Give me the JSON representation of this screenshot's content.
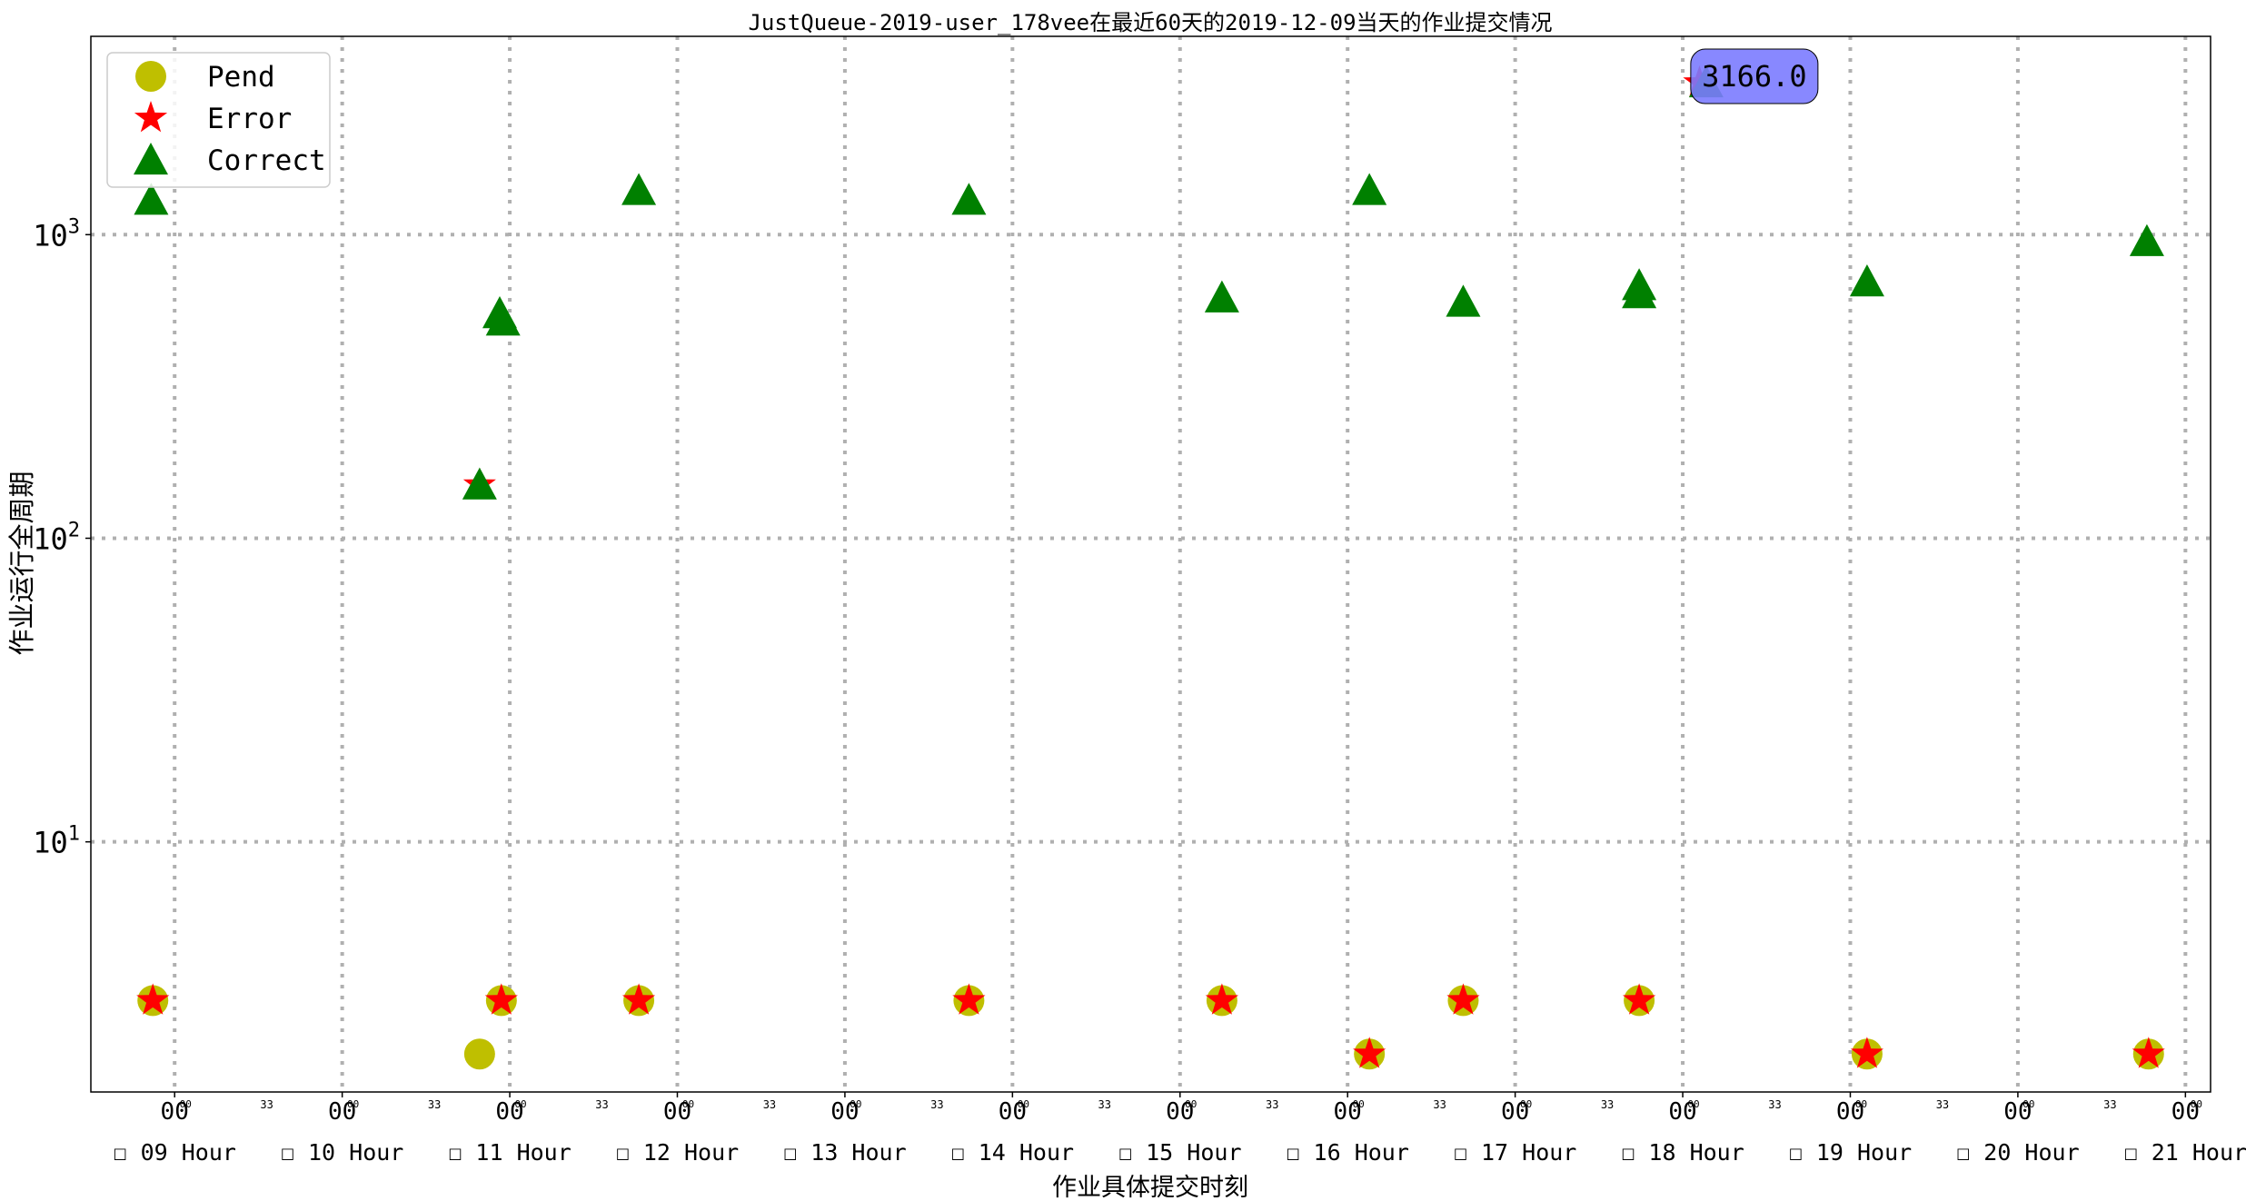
{
  "chart_data": {
    "type": "scatter",
    "title": "JustQueue-2019-user_178vee在最近60天的2019-12-09当天的作业提交情况",
    "xlabel": "作业具体提交时刻",
    "ylabel": "作业运行全周期",
    "y_scale": "log",
    "ylim": [
      1.5,
      4500
    ],
    "xlim": [
      8.5,
      21.15
    ],
    "grid": true,
    "legend_position": "upper-left",
    "y_ticks": [
      {
        "value": 10,
        "base": "10",
        "exp": "1"
      },
      {
        "value": 100,
        "base": "10",
        "exp": "2"
      },
      {
        "value": 1000,
        "base": "10",
        "exp": "3"
      }
    ],
    "x_major_ticks": [
      9,
      10,
      11,
      12,
      13,
      14,
      15,
      16,
      17,
      18,
      19,
      20,
      21
    ],
    "x_major_tick_label": "00",
    "x_minor_tick_label": "33",
    "x_minor_small_label": "00",
    "x_hour_labels": [
      "☐ 09 Hour",
      "☐ 10 Hour",
      "☐ 11 Hour",
      "☐ 12 Hour",
      "☐ 13 Hour",
      "☐ 14 Hour",
      "☐ 15 Hour",
      "☐ 16 Hour",
      "☐ 17 Hour",
      "☐ 18 Hour",
      "☐ 19 Hour",
      "☐ 20 Hour",
      "☐ 21 Hour"
    ],
    "series": [
      {
        "name": "Pend",
        "marker": "circle",
        "color": "#bfbf00",
        "points": [
          {
            "x": 8.87,
            "y": 3
          },
          {
            "x": 10.82,
            "y": 2
          },
          {
            "x": 10.95,
            "y": 3
          },
          {
            "x": 11.77,
            "y": 3
          },
          {
            "x": 13.74,
            "y": 3
          },
          {
            "x": 15.25,
            "y": 3
          },
          {
            "x": 16.13,
            "y": 2
          },
          {
            "x": 16.69,
            "y": 3
          },
          {
            "x": 17.74,
            "y": 3
          },
          {
            "x": 19.1,
            "y": 2
          },
          {
            "x": 20.78,
            "y": 2
          }
        ]
      },
      {
        "name": "Error",
        "marker": "star",
        "color": "#ff0000",
        "points": [
          {
            "x": 8.87,
            "y": 3
          },
          {
            "x": 10.82,
            "y": 150
          },
          {
            "x": 10.95,
            "y": 3
          },
          {
            "x": 11.77,
            "y": 3
          },
          {
            "x": 13.74,
            "y": 3
          },
          {
            "x": 15.25,
            "y": 3
          },
          {
            "x": 16.13,
            "y": 2
          },
          {
            "x": 16.69,
            "y": 3
          },
          {
            "x": 17.74,
            "y": 3
          },
          {
            "x": 18.1,
            "y": 3166
          },
          {
            "x": 19.1,
            "y": 2
          },
          {
            "x": 20.78,
            "y": 2
          }
        ]
      },
      {
        "name": "Correct",
        "marker": "triangle",
        "color": "#008000",
        "points": [
          {
            "x": 8.86,
            "y": 1300
          },
          {
            "x": 10.82,
            "y": 150
          },
          {
            "x": 10.94,
            "y": 550
          },
          {
            "x": 10.96,
            "y": 520
          },
          {
            "x": 11.77,
            "y": 1400
          },
          {
            "x": 13.74,
            "y": 1300
          },
          {
            "x": 15.25,
            "y": 620
          },
          {
            "x": 16.13,
            "y": 1400
          },
          {
            "x": 16.69,
            "y": 600
          },
          {
            "x": 17.74,
            "y": 640
          },
          {
            "x": 17.74,
            "y": 680
          },
          {
            "x": 18.14,
            "y": 3166
          },
          {
            "x": 19.1,
            "y": 700
          },
          {
            "x": 20.77,
            "y": 950
          }
        ]
      }
    ],
    "annotation": {
      "text": "3166.0",
      "x": 18.14,
      "y": 3166,
      "box_color": "#7b7bff"
    }
  }
}
